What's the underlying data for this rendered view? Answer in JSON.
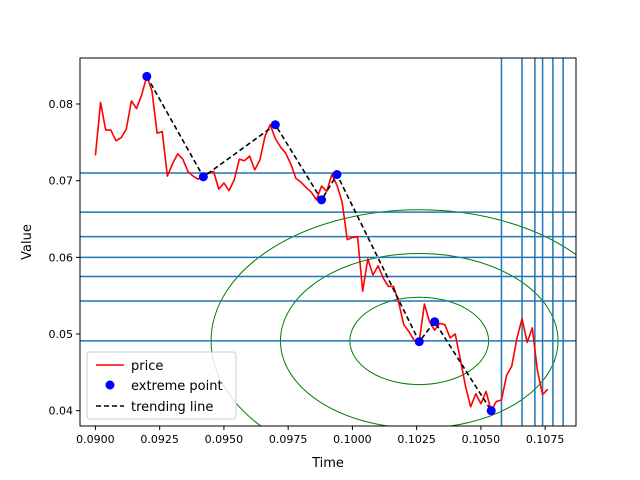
{
  "chart_data": {
    "type": "line",
    "xlabel": "Time",
    "ylabel": "Value",
    "xlim": [
      0.0894,
      0.1087
    ],
    "ylim": [
      0.038,
      0.086
    ],
    "xticks": [
      0.09,
      0.0925,
      0.095,
      0.0975,
      0.1,
      0.1025,
      0.105,
      0.1075
    ],
    "xtick_labels": [
      "0.0900",
      "0.0925",
      "0.0950",
      "0.0975",
      "0.1000",
      "0.1025",
      "0.1050",
      "0.1075"
    ],
    "yticks": [
      0.04,
      0.05,
      0.06,
      0.07,
      0.08
    ],
    "ytick_labels": [
      "0.04",
      "0.05",
      "0.06",
      "0.07",
      "0.08"
    ],
    "colors": {
      "price": "#ff0000",
      "extreme": "#0000ff",
      "trend": "#000000",
      "hline": "#1f77b4",
      "vline": "#1f77b4",
      "ellipse": "#008000"
    },
    "series": [
      {
        "name": "price",
        "x": [
          0.09,
          0.0902,
          0.0904,
          0.0906,
          0.0908,
          0.091,
          0.0912,
          0.0914,
          0.0916,
          0.0918,
          0.092,
          0.0922,
          0.0924,
          0.0926,
          0.0928,
          0.093,
          0.0932,
          0.0934,
          0.0936,
          0.0938,
          0.094,
          0.0942,
          0.0944,
          0.0946,
          0.0948,
          0.095,
          0.0952,
          0.0954,
          0.0956,
          0.0958,
          0.096,
          0.0962,
          0.0964,
          0.0966,
          0.0968,
          0.097,
          0.0972,
          0.0974,
          0.0976,
          0.0978,
          0.098,
          0.0982,
          0.0984,
          0.0986,
          0.0988,
          0.099,
          0.0992,
          0.0994,
          0.0996,
          0.0998,
          0.1,
          0.1002,
          0.1004,
          0.1006,
          0.1008,
          0.101,
          0.1012,
          0.1014,
          0.1016,
          0.1018,
          0.102,
          0.1022,
          0.1024,
          0.1026,
          0.1028,
          0.103,
          0.1032,
          0.1034,
          0.1036,
          0.1038,
          0.104,
          0.1042,
          0.1044,
          0.1046,
          0.1048,
          0.105,
          0.1052,
          0.1054,
          0.1056,
          0.1058,
          0.106,
          0.1062,
          0.1064,
          0.1066,
          0.1068,
          0.107,
          0.1072,
          0.1074,
          0.1076
        ],
        "y": [
          0.0733,
          0.0802,
          0.0766,
          0.0766,
          0.0752,
          0.0756,
          0.0767,
          0.0804,
          0.0794,
          0.0812,
          0.0836,
          0.0817,
          0.0762,
          0.0764,
          0.0706,
          0.0722,
          0.0735,
          0.0728,
          0.0712,
          0.0706,
          0.0702,
          0.0706,
          0.071,
          0.0712,
          0.0689,
          0.0697,
          0.0687,
          0.0701,
          0.0728,
          0.0726,
          0.0732,
          0.0714,
          0.0727,
          0.0758,
          0.0773,
          0.0755,
          0.0744,
          0.0736,
          0.0722,
          0.0703,
          0.0698,
          0.0691,
          0.0685,
          0.0675,
          0.0693,
          0.0686,
          0.0708,
          0.0694,
          0.0672,
          0.0623,
          0.0626,
          0.0627,
          0.0556,
          0.0598,
          0.0577,
          0.0589,
          0.0573,
          0.0562,
          0.0562,
          0.0541,
          0.0512,
          0.0503,
          0.0492,
          0.049,
          0.0539,
          0.0516,
          0.0505,
          0.0514,
          0.0512,
          0.0495,
          0.05,
          0.0467,
          0.0432,
          0.0405,
          0.0422,
          0.0409,
          0.0425,
          0.04,
          0.0412,
          0.0414,
          0.0446,
          0.0458,
          0.0494,
          0.052,
          0.0489,
          0.0508,
          0.0452,
          0.0421,
          0.0428
        ]
      },
      {
        "name": "extreme point",
        "x": [
          0.092,
          0.0942,
          0.097,
          0.0988,
          0.0994,
          0.1026,
          0.1032,
          0.1054
        ],
        "y": [
          0.0836,
          0.0705,
          0.0773,
          0.0675,
          0.0708,
          0.049,
          0.0516,
          0.04
        ]
      },
      {
        "name": "trending line",
        "x": [
          0.092,
          0.0942,
          0.097,
          0.0988,
          0.0994,
          0.1026,
          0.1032,
          0.1054
        ],
        "y": [
          0.0836,
          0.0705,
          0.0773,
          0.0675,
          0.0708,
          0.049,
          0.0516,
          0.04
        ]
      }
    ],
    "hlines": [
      0.0491,
      0.0543,
      0.0575,
      0.06,
      0.0627,
      0.0659,
      0.071
    ],
    "vlines": [
      0.1058,
      0.1066,
      0.1071,
      0.1074,
      0.1078,
      0.1082
    ],
    "ellipses": [
      {
        "cx": 0.1026,
        "cy": 0.0491,
        "rx": 0.0027,
        "ry": 0.0057
      },
      {
        "cx": 0.1026,
        "cy": 0.0491,
        "rx": 0.0054,
        "ry": 0.0114
      },
      {
        "cx": 0.1026,
        "cy": 0.0491,
        "rx": 0.0081,
        "ry": 0.0171
      }
    ],
    "legend": {
      "placement": "lower-left",
      "entries": [
        "price",
        "extreme point",
        "trending line"
      ]
    }
  }
}
